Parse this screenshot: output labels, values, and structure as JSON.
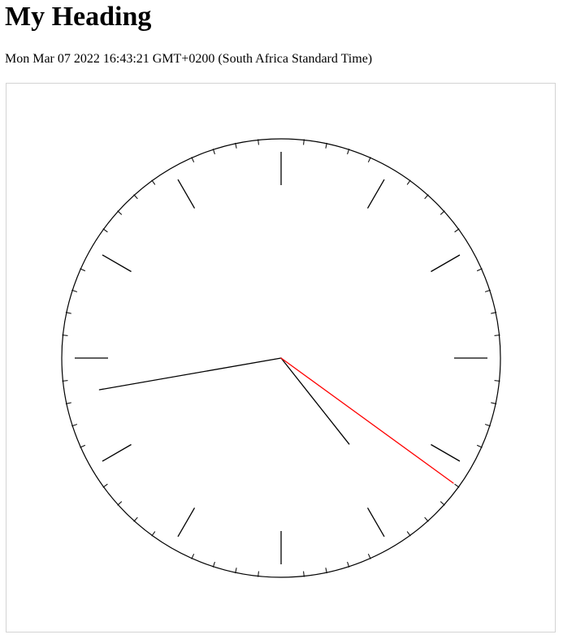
{
  "page": {
    "heading": "My Heading",
    "date_text": "Mon Mar 07 2022 16:43:21 GMT+0200 (South Africa Standard Time)"
  },
  "clock": {
    "time": {
      "hours": 16,
      "minutes": 43,
      "seconds": 21
    },
    "colors": {
      "face_stroke": "#000000",
      "ticks": "#000000",
      "hour_hand": "#000000",
      "minute_hand": "#000000",
      "second_hand": "#ff0000",
      "frame_border": "#d3d3d3"
    }
  }
}
